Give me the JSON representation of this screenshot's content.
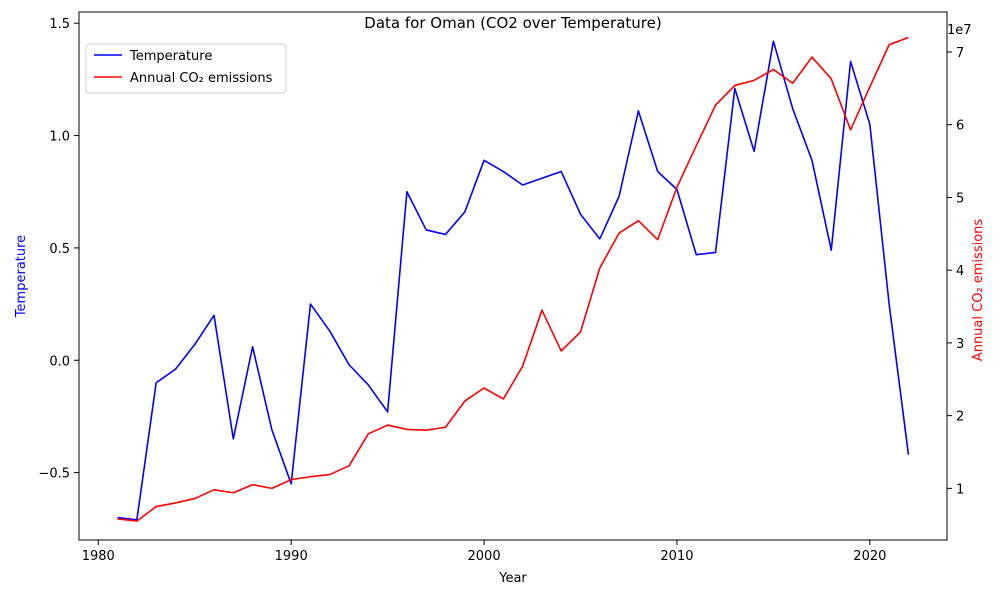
{
  "chart_data": {
    "type": "line",
    "title": "Data for Oman (CO2 over Temperature)",
    "xlabel": "Year",
    "x_ticks": [
      1980,
      1990,
      2000,
      2010,
      2020
    ],
    "xlim": [
      1979,
      2024
    ],
    "x": [
      1981,
      1982,
      1983,
      1984,
      1985,
      1986,
      1987,
      1988,
      1989,
      1990,
      1991,
      1992,
      1993,
      1994,
      1995,
      1996,
      1997,
      1998,
      1999,
      2000,
      2001,
      2002,
      2003,
      2004,
      2005,
      2006,
      2007,
      2008,
      2009,
      2010,
      2011,
      2012,
      2013,
      2014,
      2015,
      2016,
      2017,
      2018,
      2019,
      2020,
      2021,
      2022
    ],
    "left_axis": {
      "label": "Temperature",
      "color": "#0000ff",
      "ylim": [
        -0.8,
        1.55
      ],
      "ticks": [
        -0.5,
        0.0,
        0.5,
        1.0,
        1.5
      ],
      "tick_labels": [
        "−0.5",
        "0.0",
        "0.5",
        "1.0",
        "1.5"
      ]
    },
    "right_axis": {
      "label": "Annual CO₂ emissions",
      "color": "#ff0000",
      "ylim": [
        2900000,
        75500000
      ],
      "ticks": [
        10000000,
        20000000,
        30000000,
        40000000,
        50000000,
        60000000,
        70000000
      ],
      "tick_labels": [
        "1",
        "2",
        "3",
        "4",
        "5",
        "6",
        "7"
      ],
      "offset_label": "1e7"
    },
    "series": [
      {
        "name": "Temperature",
        "axis": "left",
        "color": "#0000ff",
        "values": [
          -0.7,
          -0.71,
          -0.1,
          -0.04,
          0.07,
          0.2,
          -0.35,
          0.06,
          -0.31,
          -0.55,
          0.25,
          0.13,
          -0.02,
          -0.11,
          -0.23,
          0.75,
          0.58,
          0.56,
          0.66,
          0.89,
          0.84,
          0.78,
          0.81,
          0.84,
          0.65,
          0.54,
          0.73,
          1.11,
          0.84,
          0.76,
          0.47,
          0.48,
          1.21,
          0.93,
          1.42,
          1.12,
          0.89,
          0.49,
          1.33,
          1.05,
          0.25,
          -0.42
        ]
      },
      {
        "name": "Annual CO₂ emissions",
        "axis": "right",
        "color": "#ff0000",
        "values": [
          5800000,
          5500000,
          7500000,
          8000000,
          8600000,
          9800000,
          9400000,
          10500000,
          10000000,
          11200000,
          11600000,
          11900000,
          13100000,
          17500000,
          18700000,
          18100000,
          18000000,
          18400000,
          22000000,
          23800000,
          22300000,
          26800000,
          34500000,
          28900000,
          31500000,
          40300000,
          45100000,
          46800000,
          44200000,
          51400000,
          57100000,
          62700000,
          65400000,
          66100000,
          67600000,
          65700000,
          69300000,
          66300000,
          59300000,
          65200000,
          71000000,
          72000000
        ]
      }
    ],
    "legend": {
      "position": "top-left",
      "entries": [
        "Temperature",
        "Annual CO₂ emissions"
      ]
    }
  }
}
